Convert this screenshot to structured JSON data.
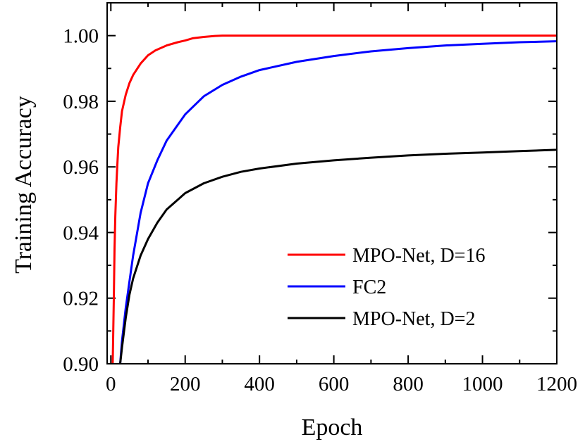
{
  "chart_data": {
    "type": "line",
    "xlabel": "Epoch",
    "ylabel": "Training Accuracy",
    "xlim": [
      -10,
      1200
    ],
    "ylim": [
      0.9,
      1.01
    ],
    "xticks": [
      0,
      200,
      400,
      600,
      800,
      1000,
      1200
    ],
    "xtick_labels": [
      "0",
      "200",
      "400",
      "600",
      "800",
      "1000",
      "1200"
    ],
    "yticks": [
      0.9,
      0.92,
      0.94,
      0.96,
      0.98,
      1.0
    ],
    "ytick_labels": [
      "0.90",
      "0.92",
      "0.94",
      "0.96",
      "0.98",
      "1.00"
    ],
    "grid": false,
    "legend_position": "lower-right",
    "series": [
      {
        "name": "MPO-Net, D=16",
        "color": "#ff0000",
        "x": [
          5,
          8,
          10,
          12,
          15,
          18,
          20,
          25,
          30,
          40,
          50,
          60,
          80,
          100,
          120,
          150,
          180,
          200,
          220,
          250,
          280,
          300,
          350,
          400,
          600,
          800,
          1000,
          1200
        ],
        "y": [
          0.9,
          0.92,
          0.935,
          0.945,
          0.955,
          0.962,
          0.966,
          0.972,
          0.977,
          0.982,
          0.9855,
          0.988,
          0.9915,
          0.994,
          0.9955,
          0.997,
          0.998,
          0.9985,
          0.9992,
          0.9996,
          0.9999,
          1.0,
          1.0,
          1.0,
          1.0,
          1.0,
          1.0,
          1.0
        ]
      },
      {
        "name": "FC2",
        "color": "#0000ff",
        "x": [
          25,
          30,
          40,
          50,
          60,
          80,
          100,
          125,
          150,
          200,
          250,
          300,
          350,
          400,
          500,
          600,
          700,
          800,
          900,
          1000,
          1100,
          1200
        ],
        "y": [
          0.9,
          0.907,
          0.917,
          0.925,
          0.933,
          0.946,
          0.955,
          0.962,
          0.968,
          0.976,
          0.9815,
          0.985,
          0.9875,
          0.9895,
          0.992,
          0.9938,
          0.9952,
          0.9962,
          0.997,
          0.9975,
          0.998,
          0.9983
        ]
      },
      {
        "name": "MPO-Net, D=2",
        "color": "#000000",
        "x": [
          25,
          30,
          40,
          50,
          60,
          80,
          100,
          125,
          150,
          200,
          250,
          300,
          350,
          400,
          500,
          600,
          700,
          800,
          900,
          1000,
          1100,
          1200
        ],
        "y": [
          0.9,
          0.905,
          0.914,
          0.921,
          0.926,
          0.933,
          0.938,
          0.943,
          0.947,
          0.952,
          0.955,
          0.957,
          0.9585,
          0.9595,
          0.961,
          0.962,
          0.9628,
          0.9635,
          0.964,
          0.9644,
          0.9648,
          0.9652
        ]
      }
    ]
  }
}
